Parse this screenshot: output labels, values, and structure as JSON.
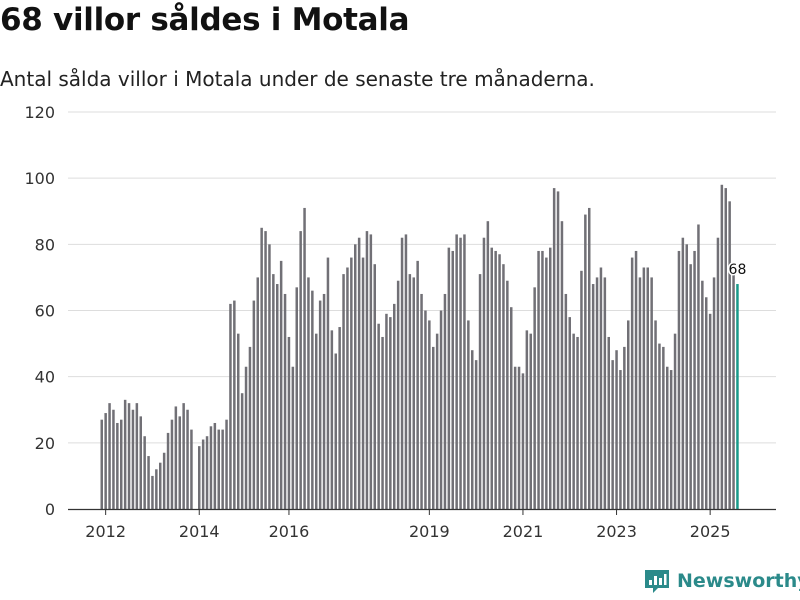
{
  "title": "68 villor såldes i Motala",
  "subtitle": "Antal sålda villor i Motala under de senaste tre månaderna.",
  "brand": {
    "name": "Newsworthy",
    "icon": "newsworthy-logo-icon"
  },
  "colors": {
    "bar": "#717076",
    "highlight": "#1a9a8a",
    "grid": "#dddddd",
    "axis": "#333333",
    "brand": "#2b8a8a"
  },
  "chart_data": {
    "type": "bar",
    "ylim": [
      0,
      120
    ],
    "yticks": [
      0,
      20,
      40,
      60,
      80,
      100,
      120
    ],
    "xtick_labels": [
      "2012",
      "2014",
      "2016",
      "2019",
      "2021",
      "2023",
      "2025"
    ],
    "xtick_index": [
      1,
      25,
      48,
      84,
      108,
      132,
      156
    ],
    "highlight_label": "68",
    "values": [
      27,
      29,
      32,
      30,
      26,
      27,
      33,
      32,
      30,
      32,
      28,
      22,
      16,
      10,
      12,
      14,
      17,
      23,
      27,
      31,
      28,
      32,
      30,
      24,
      null,
      19,
      21,
      22,
      25,
      26,
      24,
      24,
      27,
      62,
      63,
      53,
      35,
      43,
      49,
      63,
      70,
      85,
      84,
      80,
      71,
      68,
      75,
      65,
      52,
      43,
      67,
      84,
      91,
      70,
      66,
      53,
      63,
      65,
      76,
      54,
      47,
      55,
      71,
      73,
      76,
      80,
      82,
      76,
      84,
      83,
      74,
      56,
      52,
      59,
      58,
      62,
      69,
      82,
      83,
      71,
      70,
      75,
      65,
      60,
      57,
      49,
      53,
      60,
      65,
      79,
      78,
      83,
      82,
      83,
      57,
      48,
      45,
      71,
      82,
      87,
      79,
      78,
      77,
      74,
      69,
      61,
      43,
      43,
      41,
      54,
      53,
      67,
      78,
      78,
      76,
      79,
      97,
      96,
      87,
      65,
      58,
      53,
      52,
      72,
      89,
      91,
      68,
      70,
      73,
      70,
      52,
      45,
      48,
      42,
      49,
      57,
      76,
      78,
      70,
      73,
      73,
      70,
      57,
      50,
      49,
      43,
      42,
      53,
      78,
      82,
      80,
      74,
      78,
      86,
      69,
      64,
      59,
      70,
      82,
      98,
      97,
      93,
      71,
      68
    ]
  }
}
